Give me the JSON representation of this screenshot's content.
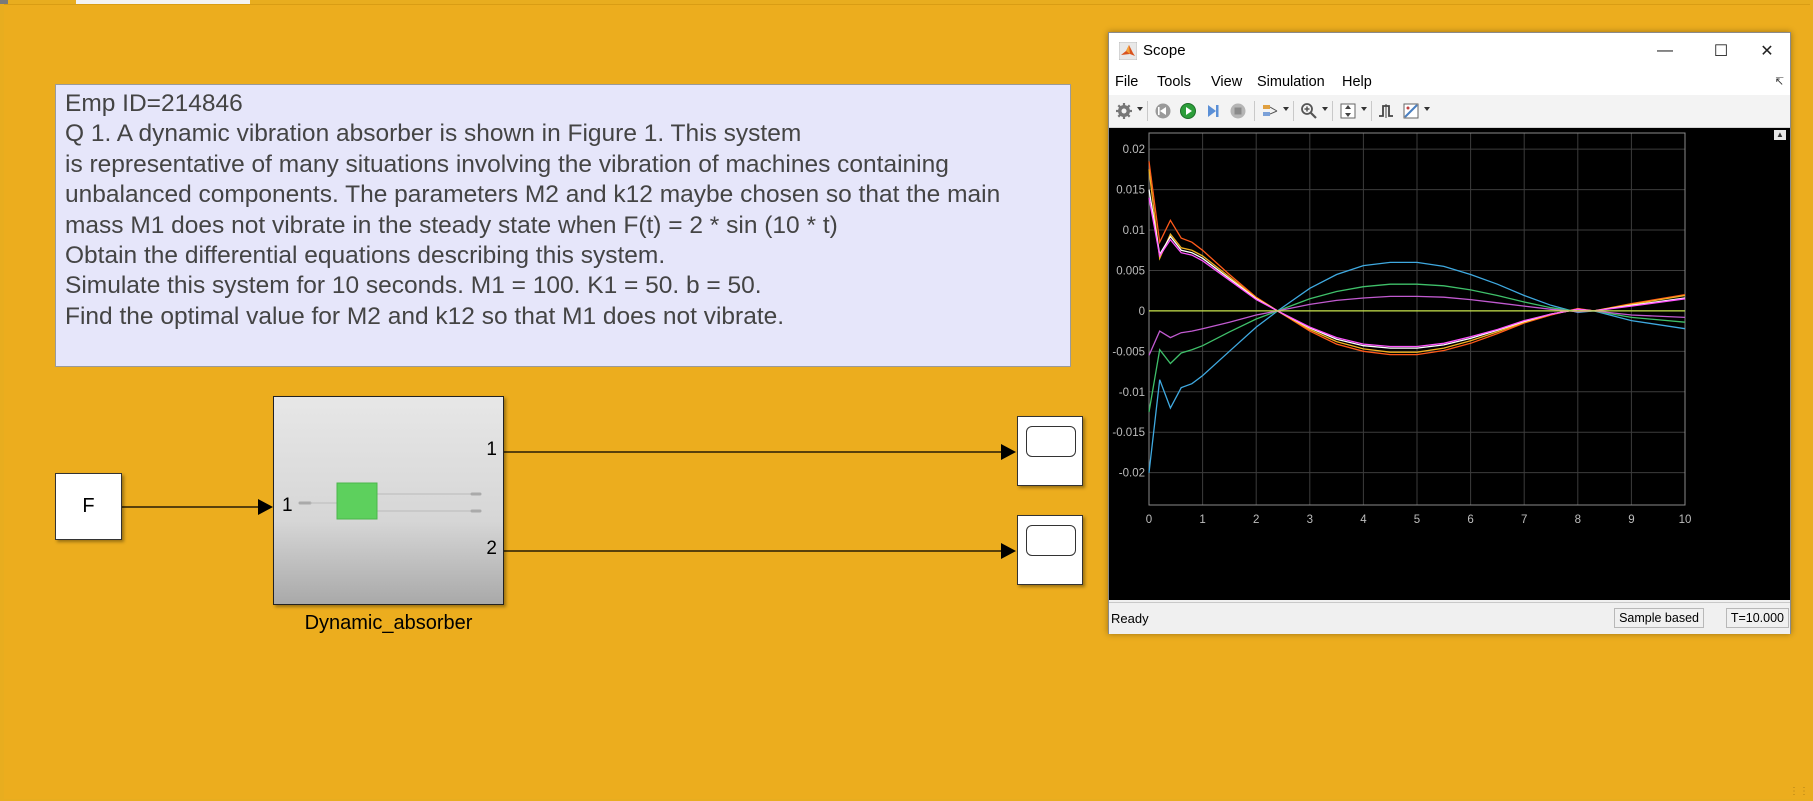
{
  "annotation": {
    "lines": [
      "Emp ID=214846",
      "Q 1. A dynamic vibration absorber is shown in Figure 1. This system",
      "is representative of many situations involving the vibration of machines containing",
      "unbalanced components. The parameters M2 and k12 maybe chosen so that the main",
      "mass M1 does not vibrate in the steady state when F(t) = 2 * sin (10 * t)",
      "Obtain the differential equations describing this system.",
      "Simulate this system for 10 seconds. M1 = 100. K1 = 50. b = 50.",
      "Find the optimal value for M2 and k12 so that M1 does not vibrate."
    ]
  },
  "model": {
    "source_block_label": "F",
    "subsystem_name": "Dynamic_absorber",
    "inport_label": "1",
    "outport1_label": "1",
    "outport2_label": "2",
    "subsystem_icon_color": "#5dd05d"
  },
  "scope": {
    "title": "Scope",
    "menu": [
      "File",
      "Tools",
      "View",
      "Simulation",
      "Help"
    ],
    "status": "Ready",
    "sample_mode": "Sample based",
    "time": "T=10.000"
  },
  "chart_data": {
    "type": "line",
    "xlim": [
      0,
      10
    ],
    "ylim": [
      -0.024,
      0.022
    ],
    "xticks": [
      0,
      1,
      2,
      3,
      4,
      5,
      6,
      7,
      8,
      9,
      10
    ],
    "yticks": [
      -0.02,
      -0.015,
      -0.01,
      -0.005,
      0,
      0.005,
      0.01,
      0.015,
      0.02
    ],
    "ytick_labels": [
      "-0.02",
      "-0.015",
      "-0.01",
      "-0.005",
      "0",
      "0.005",
      "0.01",
      "0.015",
      "0.02"
    ],
    "grid": true,
    "background": "#000000",
    "series": [
      {
        "color": "#ff5a1a",
        "x": [
          0,
          0.2,
          0.4,
          0.6,
          0.8,
          1,
          1.5,
          2,
          2.4,
          3,
          3.5,
          4,
          4.5,
          5,
          5.5,
          6,
          6.5,
          7,
          7.5,
          8,
          8.3,
          9,
          10
        ],
        "values": [
          0.0185,
          0.0085,
          0.0112,
          0.009,
          0.0085,
          0.0075,
          0.0045,
          0.0017,
          0,
          -0.0025,
          -0.0041,
          -0.005,
          -0.0054,
          -0.0054,
          -0.0049,
          -0.004,
          -0.0028,
          -0.0015,
          -0.0005,
          0.0003,
          0.0,
          0.0009,
          0.002
        ]
      },
      {
        "color": "#f2b321",
        "x": [
          0,
          0.2,
          0.4,
          0.6,
          0.8,
          1,
          1.5,
          2,
          2.4,
          3,
          3.5,
          4,
          4.5,
          5,
          5.5,
          6,
          6.5,
          7,
          7.5,
          8,
          8.3,
          9,
          10
        ],
        "values": [
          0.0175,
          0.0065,
          0.0095,
          0.0078,
          0.0075,
          0.0068,
          0.0042,
          0.0016,
          0,
          -0.0023,
          -0.0038,
          -0.0047,
          -0.0051,
          -0.0051,
          -0.0046,
          -0.0037,
          -0.0026,
          -0.0014,
          -0.0004,
          0.0002,
          0.0,
          0.0008,
          0.0019
        ]
      },
      {
        "color": "#ffffff",
        "x": [
          0,
          0.2,
          0.4,
          0.6,
          0.8,
          1,
          1.5,
          2,
          2.4,
          3,
          3.5,
          4,
          4.5,
          5,
          5.5,
          6,
          6.5,
          7,
          7.5,
          8,
          8.3,
          9,
          10
        ],
        "values": [
          0.015,
          0.007,
          0.0092,
          0.0075,
          0.0072,
          0.0065,
          0.004,
          0.0015,
          0,
          -0.0021,
          -0.0035,
          -0.0043,
          -0.0046,
          -0.0046,
          -0.0042,
          -0.0034,
          -0.0024,
          -0.0013,
          -0.0004,
          0.0002,
          0.0,
          0.0007,
          0.0016
        ]
      },
      {
        "color": "#ff55ff",
        "x": [
          0,
          0.2,
          0.4,
          0.6,
          0.8,
          1,
          1.5,
          2,
          2.4,
          3,
          3.5,
          4,
          4.5,
          5,
          5.5,
          6,
          6.5,
          7,
          7.5,
          8,
          8.3,
          9,
          10
        ],
        "values": [
          0.014,
          0.0068,
          0.0088,
          0.0072,
          0.0069,
          0.0062,
          0.0038,
          0.0014,
          0,
          -0.002,
          -0.0033,
          -0.0041,
          -0.0044,
          -0.0044,
          -0.004,
          -0.0032,
          -0.0023,
          -0.0012,
          -0.0004,
          0.0002,
          0.0,
          0.0006,
          0.0015
        ]
      },
      {
        "color": "#3fa9e0",
        "x": [
          0,
          0.2,
          0.4,
          0.6,
          0.8,
          1,
          1.5,
          2,
          2.4,
          3,
          3.5,
          4,
          4.5,
          5,
          5.5,
          6,
          6.5,
          7,
          7.5,
          8,
          8.3,
          9,
          10
        ],
        "values": [
          -0.02,
          -0.0085,
          -0.012,
          -0.0095,
          -0.009,
          -0.008,
          -0.005,
          -0.002,
          0,
          0.0028,
          0.0045,
          0.0056,
          0.006,
          0.006,
          0.0055,
          0.0045,
          0.0033,
          0.0019,
          0.0007,
          -0.0002,
          0.0,
          -0.0012,
          -0.0022
        ]
      },
      {
        "color": "#3fc06a",
        "x": [
          0,
          0.2,
          0.4,
          0.6,
          0.8,
          1,
          1.5,
          2,
          2.4,
          3,
          3.5,
          4,
          4.5,
          5,
          5.5,
          6,
          6.5,
          7,
          7.5,
          8,
          8.3,
          9,
          10
        ],
        "values": [
          -0.0125,
          -0.0048,
          -0.0065,
          -0.0052,
          -0.0048,
          -0.0043,
          -0.0026,
          -0.001,
          0,
          0.0015,
          0.0024,
          0.003,
          0.0033,
          0.0033,
          0.0031,
          0.0026,
          0.0019,
          0.0011,
          0.0004,
          -0.0001,
          0.0,
          -0.0008,
          -0.0014
        ]
      },
      {
        "color": "#c15ad0",
        "x": [
          0,
          0.2,
          0.4,
          0.6,
          0.8,
          1,
          1.5,
          2,
          2.4,
          3,
          3.5,
          4,
          4.5,
          5,
          5.5,
          6,
          6.5,
          7,
          7.5,
          8,
          8.3,
          9,
          10
        ],
        "values": [
          -0.0055,
          -0.0025,
          -0.0033,
          -0.0027,
          -0.0025,
          -0.0022,
          -0.0014,
          -0.0005,
          0,
          0.0008,
          0.0013,
          0.0016,
          0.0018,
          0.0018,
          0.0017,
          0.0014,
          0.001,
          0.0006,
          0.0002,
          -0.0001,
          0.0,
          -0.0005,
          -0.0008
        ]
      },
      {
        "color": "#c6e24a",
        "x": [
          0,
          10
        ],
        "values": [
          0.0,
          0.0
        ]
      }
    ]
  }
}
